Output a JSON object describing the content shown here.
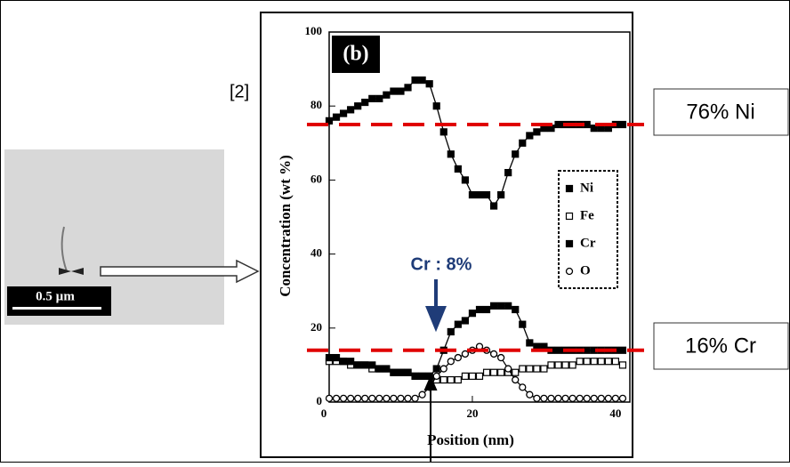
{
  "reference": "[2]",
  "micrograph": {
    "scale_bar": "0.5 µm"
  },
  "chart_data": {
    "type": "scatter_line",
    "panel_label": "(b)",
    "x_label": "Position (nm)",
    "y_label": "Concentration (wt %)",
    "x": [
      0,
      1,
      2,
      3,
      4,
      5,
      6,
      7,
      8,
      9,
      10,
      11,
      12,
      13,
      14,
      15,
      16,
      17,
      18,
      19,
      20,
      21,
      22,
      23,
      24,
      25,
      26,
      27,
      28,
      29,
      30,
      31,
      32,
      33,
      34,
      35,
      36,
      37,
      38,
      39,
      40,
      41
    ],
    "series": [
      {
        "name": "Ni",
        "marker": "filled-square",
        "color": "#000000",
        "values": [
          76,
          77,
          78,
          79,
          80,
          81,
          82,
          82,
          83,
          84,
          84,
          85,
          87,
          87,
          86,
          80,
          73,
          67,
          63,
          60,
          56,
          56,
          56,
          53,
          56,
          62,
          67,
          70,
          72,
          73,
          74,
          74,
          75,
          75,
          75,
          75,
          75,
          74,
          74,
          74,
          75,
          75
        ]
      },
      {
        "name": "Fe",
        "marker": "open-square",
        "color": "#000000",
        "values": [
          11,
          11,
          11,
          10,
          10,
          10,
          9,
          9,
          9,
          8,
          8,
          8,
          7,
          7,
          7,
          6,
          6,
          6,
          6,
          7,
          7,
          7,
          8,
          8,
          8,
          8,
          8,
          9,
          9,
          9,
          9,
          10,
          10,
          10,
          10,
          11,
          11,
          11,
          11,
          11,
          11,
          10
        ]
      },
      {
        "name": "Cr",
        "marker": "filled-square",
        "color": "#000000",
        "values": [
          12,
          12,
          11,
          11,
          10,
          10,
          10,
          9,
          9,
          8,
          8,
          8,
          7,
          7,
          7,
          9,
          14,
          19,
          21,
          22,
          24,
          25,
          25,
          26,
          26,
          26,
          25,
          21,
          16,
          15,
          15,
          14,
          14,
          14,
          14,
          14,
          14,
          14,
          14,
          14,
          14,
          14
        ]
      },
      {
        "name": "O",
        "marker": "open-circle",
        "color": "#000000",
        "values": [
          1,
          1,
          1,
          1,
          1,
          1,
          1,
          1,
          1,
          1,
          1,
          1,
          1,
          2,
          4,
          7,
          9,
          11,
          12,
          13,
          14,
          15,
          14,
          13,
          12,
          9,
          6,
          4,
          2,
          1,
          1,
          1,
          1,
          1,
          1,
          1,
          1,
          1,
          1,
          1,
          1,
          1
        ]
      }
    ],
    "xlim": [
      0,
      42
    ],
    "xticks": [
      0,
      20,
      40
    ],
    "ylim": [
      0,
      100
    ],
    "yticks": [
      0,
      20,
      40,
      60,
      80,
      100
    ],
    "reference_lines": [
      75,
      14
    ],
    "reference_color": "#e00000",
    "annotations": [
      "76% Ni",
      "16% Cr",
      "Cr : 8%"
    ]
  }
}
